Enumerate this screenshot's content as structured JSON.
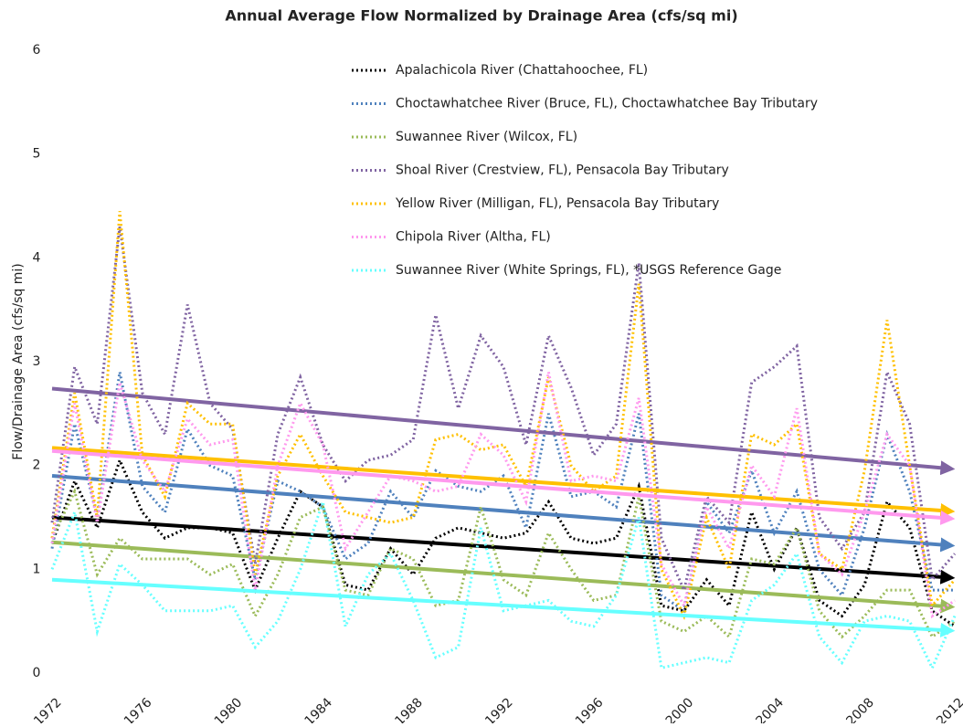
{
  "chart_data": {
    "type": "line",
    "title": "Annual Average Flow Normalized by Drainage Area (cfs/sq mi)",
    "y_label": "Flow/Drainage Area (cfs/sq mi)",
    "x": [
      1972,
      1973,
      1974,
      1975,
      1976,
      1977,
      1978,
      1979,
      1980,
      1981,
      1982,
      1983,
      1984,
      1985,
      1986,
      1987,
      1988,
      1989,
      1990,
      1991,
      1992,
      1993,
      1994,
      1995,
      1996,
      1997,
      1998,
      1999,
      2000,
      2001,
      2002,
      2003,
      2004,
      2005,
      2006,
      2007,
      2008,
      2009,
      2010,
      2011,
      2012
    ],
    "xlim": [
      1972,
      2012
    ],
    "xticks": [
      1972,
      1976,
      1980,
      1984,
      1988,
      1992,
      1996,
      2000,
      2004,
      2008,
      2012
    ],
    "ylim": [
      0,
      6
    ],
    "yticks": [
      0,
      1,
      2,
      3,
      4,
      5,
      6
    ],
    "series": [
      {
        "name": "Apalachicola River (Chattahoochee, FL)",
        "color": "#000000",
        "values": [
          1.25,
          1.85,
          1.4,
          2.05,
          1.55,
          1.3,
          1.4,
          1.4,
          1.35,
          0.8,
          1.3,
          1.75,
          1.6,
          0.85,
          0.8,
          1.2,
          0.95,
          1.3,
          1.4,
          1.35,
          1.3,
          1.35,
          1.65,
          1.3,
          1.25,
          1.3,
          1.8,
          0.65,
          0.6,
          0.9,
          0.65,
          1.55,
          1.0,
          1.4,
          0.7,
          0.55,
          0.85,
          1.65,
          1.4,
          0.6,
          0.45
        ],
        "trend": [
          1.5,
          0.92
        ]
      },
      {
        "name": "Choctawhatchee River (Bruce, FL), Choctawhatchee Bay Tributary",
        "color": "#4f81bd",
        "values": [
          1.2,
          2.4,
          1.5,
          2.9,
          1.8,
          1.55,
          2.35,
          2.0,
          1.9,
          0.9,
          1.85,
          1.75,
          1.6,
          1.1,
          1.25,
          1.75,
          1.5,
          1.95,
          1.8,
          1.75,
          1.9,
          1.4,
          2.5,
          1.7,
          1.75,
          1.6,
          2.5,
          0.75,
          0.6,
          1.65,
          1.35,
          1.95,
          1.35,
          1.75,
          1.0,
          0.75,
          1.4,
          2.3,
          1.75,
          0.8,
          0.8
        ],
        "trend": [
          1.9,
          1.23
        ]
      },
      {
        "name": "Suwannee River (Wilcox, FL)",
        "color": "#9bbb59",
        "values": [
          1.3,
          1.75,
          0.95,
          1.3,
          1.1,
          1.1,
          1.1,
          0.95,
          1.05,
          0.55,
          0.95,
          1.5,
          1.6,
          0.8,
          0.75,
          1.2,
          1.1,
          0.65,
          0.7,
          1.6,
          0.9,
          0.75,
          1.35,
          1.0,
          0.7,
          0.75,
          1.7,
          0.5,
          0.4,
          0.55,
          0.35,
          1.1,
          1.05,
          1.4,
          0.6,
          0.35,
          0.55,
          0.8,
          0.8,
          0.35,
          0.5
        ],
        "trend": [
          1.26,
          0.64
        ]
      },
      {
        "name": "Shoal River (Crestview, FL), Pensacola Bay Tributary",
        "color": "#8064a2",
        "values": [
          1.45,
          2.95,
          2.4,
          4.3,
          2.7,
          2.3,
          3.55,
          2.6,
          2.35,
          1.05,
          2.3,
          2.85,
          2.2,
          1.85,
          2.05,
          2.1,
          2.25,
          3.45,
          2.55,
          3.25,
          2.95,
          2.2,
          3.25,
          2.75,
          2.1,
          2.4,
          3.95,
          1.3,
          0.8,
          1.7,
          1.45,
          2.8,
          2.95,
          3.15,
          1.5,
          1.2,
          1.55,
          2.9,
          2.4,
          0.9,
          1.15
        ],
        "trend": [
          2.74,
          1.97
        ]
      },
      {
        "name": "Yellow River (Milligan, FL), Pensacola Bay Tributary",
        "color": "#ffc000",
        "values": [
          1.3,
          2.7,
          1.5,
          4.45,
          2.1,
          1.7,
          2.6,
          2.4,
          2.4,
          0.95,
          1.9,
          2.3,
          1.9,
          1.55,
          1.5,
          1.45,
          1.5,
          2.25,
          2.3,
          2.15,
          2.2,
          1.8,
          2.85,
          2.0,
          1.75,
          1.9,
          3.75,
          1.0,
          0.55,
          1.5,
          1.0,
          2.3,
          2.2,
          2.4,
          1.15,
          1.0,
          1.95,
          3.4,
          2.0,
          0.65,
          0.9
        ],
        "trend": [
          2.17,
          1.56
        ]
      },
      {
        "name": "Chipola River (Altha, FL)",
        "color": "#ff99ee",
        "values": [
          1.25,
          2.6,
          1.45,
          2.8,
          2.05,
          1.75,
          2.45,
          2.2,
          2.25,
          0.8,
          2.0,
          2.6,
          2.2,
          1.2,
          1.55,
          1.9,
          1.85,
          1.75,
          1.8,
          2.3,
          2.1,
          1.65,
          2.9,
          1.85,
          1.9,
          1.85,
          2.65,
          1.05,
          0.65,
          1.6,
          1.2,
          2.0,
          1.7,
          2.55,
          1.15,
          0.95,
          1.55,
          2.3,
          2.0,
          0.55,
          0.7
        ],
        "trend": [
          2.14,
          1.49
        ]
      },
      {
        "name": "Suwannee River (White Springs, FL), *USGS Reference Gage",
        "color": "#66ffff",
        "values": [
          1.0,
          1.55,
          0.4,
          1.05,
          0.85,
          0.6,
          0.6,
          0.6,
          0.65,
          0.25,
          0.5,
          1.0,
          1.65,
          0.45,
          0.95,
          1.15,
          0.7,
          0.15,
          0.25,
          1.4,
          0.6,
          0.65,
          0.7,
          0.5,
          0.45,
          0.75,
          1.5,
          0.05,
          0.1,
          0.15,
          0.1,
          0.7,
          0.85,
          1.15,
          0.35,
          0.1,
          0.5,
          0.55,
          0.5,
          0.05,
          0.55
        ],
        "trend": [
          0.9,
          0.41
        ]
      }
    ]
  }
}
